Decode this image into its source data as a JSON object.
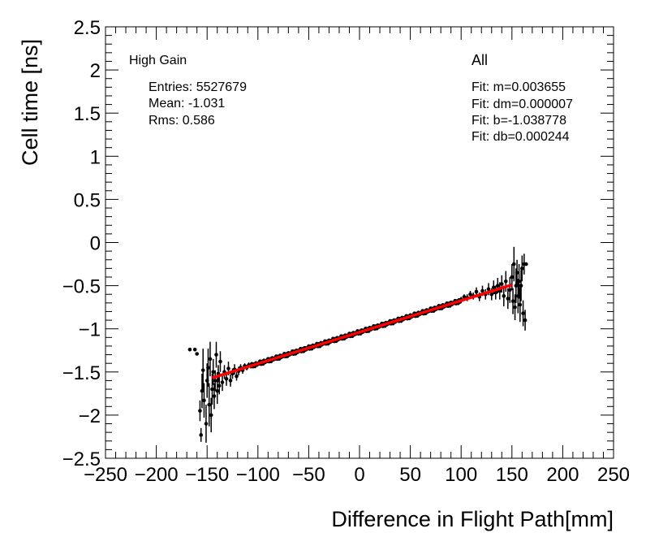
{
  "chart_data": {
    "type": "scatter",
    "xlabel": "Difference in Flight Path[mm]",
    "ylabel": "Cell time [ns]",
    "xlim": [
      -250,
      250
    ],
    "ylim": [
      -2.5,
      2.5
    ],
    "x_ticks": [
      {
        "value": -250,
        "label": "−250"
      },
      {
        "value": -200,
        "label": "−200"
      },
      {
        "value": -150,
        "label": "−150"
      },
      {
        "value": -100,
        "label": "−100"
      },
      {
        "value": -50,
        "label": "−50"
      },
      {
        "value": 0,
        "label": "0"
      },
      {
        "value": 50,
        "label": "50"
      },
      {
        "value": 100,
        "label": "100"
      },
      {
        "value": 150,
        "label": "150"
      },
      {
        "value": 200,
        "label": "200"
      },
      {
        "value": 250,
        "label": "250"
      }
    ],
    "y_ticks": [
      {
        "value": -2.5,
        "label": "−2.5"
      },
      {
        "value": -2,
        "label": "−2"
      },
      {
        "value": -1.5,
        "label": "−1.5"
      },
      {
        "value": -1,
        "label": "−1"
      },
      {
        "value": -0.5,
        "label": "−0.5"
      },
      {
        "value": 0,
        "label": "0"
      },
      {
        "value": 0.5,
        "label": "0.5"
      },
      {
        "value": 1,
        "label": "1"
      },
      {
        "value": 1.5,
        "label": "1.5"
      },
      {
        "value": 2,
        "label": "2"
      },
      {
        "value": 2.5,
        "label": "2.5"
      }
    ],
    "grid": false,
    "annotations": {
      "gain_label": "High Gain",
      "entries": "Entries: 5527679",
      "mean": "Mean: -1.031",
      "rms": "Rms: 0.586",
      "selection": "All",
      "fit_m": "Fit: m=0.003655",
      "fit_dm": "Fit: dm=0.000007",
      "fit_b": "Fit: b=-1.038778",
      "fit_db": "Fit: db=0.000244"
    },
    "fit_line": {
      "slope": 0.003655,
      "intercept": -1.038778,
      "x_range": [
        -145,
        150
      ],
      "color": "#ff0000"
    },
    "points": [
      {
        "x": -167,
        "y": -1.24,
        "err": 0
      },
      {
        "x": -162,
        "y": -1.24,
        "err": 0
      },
      {
        "x": -160,
        "y": -1.29,
        "err": 0
      },
      {
        "x": -157,
        "y": -1.95,
        "err": 0.12
      },
      {
        "x": -156,
        "y": -2.23,
        "err": 0.08
      },
      {
        "x": -155,
        "y": -1.72,
        "err": 0.2
      },
      {
        "x": -154,
        "y": -1.48,
        "err": 0.25
      },
      {
        "x": -153,
        "y": -1.83,
        "err": 0.2
      },
      {
        "x": -151,
        "y": -2.1,
        "err": 0.22
      },
      {
        "x": -150,
        "y": -1.6,
        "err": 0.2
      },
      {
        "x": -149,
        "y": -1.45,
        "err": 0.22
      },
      {
        "x": -148,
        "y": -1.88,
        "err": 0.25
      },
      {
        "x": -147,
        "y": -1.35,
        "err": 0.2
      },
      {
        "x": -146,
        "y": -2.0,
        "err": 0.2
      },
      {
        "x": -145,
        "y": -1.7,
        "err": 0.18
      },
      {
        "x": -144,
        "y": -1.5,
        "err": 0.15
      },
      {
        "x": -143,
        "y": -1.78,
        "err": 0.15
      },
      {
        "x": -142,
        "y": -1.6,
        "err": 0.12
      },
      {
        "x": -141,
        "y": -1.3,
        "err": 0.15
      },
      {
        "x": -140,
        "y": -1.72,
        "err": 0.15
      },
      {
        "x": -139,
        "y": -1.52,
        "err": 0.1
      },
      {
        "x": -138,
        "y": -1.66,
        "err": 0.1
      },
      {
        "x": -137,
        "y": -1.38,
        "err": 0.12
      },
      {
        "x": -135,
        "y": -1.62,
        "err": 0.1
      },
      {
        "x": -133,
        "y": -1.5,
        "err": 0.08
      },
      {
        "x": -131,
        "y": -1.58,
        "err": 0.08
      },
      {
        "x": -129,
        "y": -1.46,
        "err": 0.08
      },
      {
        "x": -127,
        "y": -1.6,
        "err": 0.07
      },
      {
        "x": -125,
        "y": -1.52,
        "err": 0.06
      },
      {
        "x": -123,
        "y": -1.47,
        "err": 0.06
      },
      {
        "x": -121,
        "y": -1.55,
        "err": 0.05
      },
      {
        "x": -119,
        "y": -1.49,
        "err": 0.05
      },
      {
        "x": -117,
        "y": -1.45,
        "err": 0.04
      },
      {
        "x": -115,
        "y": -1.48,
        "err": 0.04
      },
      {
        "x": -113,
        "y": -1.43,
        "err": 0.03
      },
      {
        "x": -111,
        "y": -1.45,
        "err": 0.03
      },
      {
        "x": -109,
        "y": -1.42,
        "err": 0.03
      },
      {
        "x": -107,
        "y": -1.43,
        "err": 0.03
      },
      {
        "x": 100,
        "y": -0.66,
        "err": 0.03
      },
      {
        "x": 103,
        "y": -0.63,
        "err": 0.03
      },
      {
        "x": 106,
        "y": -0.64,
        "err": 0.04
      },
      {
        "x": 109,
        "y": -0.6,
        "err": 0.04
      },
      {
        "x": 112,
        "y": -0.62,
        "err": 0.04
      },
      {
        "x": 115,
        "y": -0.57,
        "err": 0.05
      },
      {
        "x": 118,
        "y": -0.63,
        "err": 0.05
      },
      {
        "x": 121,
        "y": -0.56,
        "err": 0.06
      },
      {
        "x": 124,
        "y": -0.6,
        "err": 0.06
      },
      {
        "x": 127,
        "y": -0.54,
        "err": 0.07
      },
      {
        "x": 130,
        "y": -0.6,
        "err": 0.07
      },
      {
        "x": 132,
        "y": -0.52,
        "err": 0.08
      },
      {
        "x": 134,
        "y": -0.58,
        "err": 0.08
      },
      {
        "x": 136,
        "y": -0.5,
        "err": 0.09
      },
      {
        "x": 138,
        "y": -0.56,
        "err": 0.1
      },
      {
        "x": 140,
        "y": -0.48,
        "err": 0.1
      },
      {
        "x": 142,
        "y": -0.62,
        "err": 0.12
      },
      {
        "x": 144,
        "y": -0.45,
        "err": 0.12
      },
      {
        "x": 146,
        "y": -0.65,
        "err": 0.12
      },
      {
        "x": 148,
        "y": -0.55,
        "err": 0.15
      },
      {
        "x": 150,
        "y": -0.4,
        "err": 0.15
      },
      {
        "x": 151,
        "y": -0.68,
        "err": 0.15
      },
      {
        "x": 152,
        "y": -0.25,
        "err": 0.2
      },
      {
        "x": 153,
        "y": -0.75,
        "err": 0.15
      },
      {
        "x": 154,
        "y": -0.5,
        "err": 0.2
      },
      {
        "x": 155,
        "y": -0.35,
        "err": 0.15
      },
      {
        "x": 156,
        "y": -0.62,
        "err": 0.2
      },
      {
        "x": 157,
        "y": -0.45,
        "err": 0.2
      },
      {
        "x": 158,
        "y": -0.72,
        "err": 0.2
      },
      {
        "x": 159,
        "y": -0.5,
        "err": 0.18
      },
      {
        "x": 160,
        "y": -0.3,
        "err": 0.15
      },
      {
        "x": 161,
        "y": -0.82,
        "err": 0.15
      },
      {
        "x": 162,
        "y": -0.25,
        "err": 0.12
      },
      {
        "x": 163,
        "y": -0.9,
        "err": 0.12
      },
      {
        "x": 164,
        "y": -0.25,
        "err": 0
      }
    ],
    "dense_trend": {
      "x_range": [
        -106,
        99
      ],
      "step": 1,
      "offsets": [
        0.02,
        -0.015,
        0.01,
        -0.02,
        0.015,
        -0.01,
        0.005,
        -0.005
      ],
      "err": 0.02
    }
  }
}
